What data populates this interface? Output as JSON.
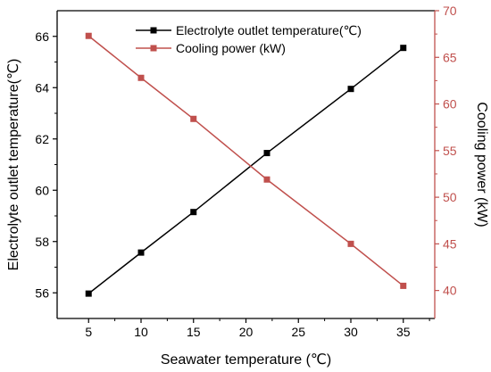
{
  "chart_data": {
    "type": "line",
    "title": "",
    "xlabel": "Seawater temperature (℃)",
    "ylabel_left": "Electrolyte outlet temperature(℃)",
    "ylabel_right": "Cooling power (kW)",
    "x": [
      5,
      10,
      15,
      22,
      30,
      35
    ],
    "xlim": [
      2,
      38
    ],
    "xticks": [
      "5",
      "10",
      "15",
      "20",
      "25",
      "30",
      "35"
    ],
    "ylim_left": [
      55,
      67
    ],
    "yticks_left": [
      "56",
      "58",
      "60",
      "62",
      "64",
      "66"
    ],
    "ylim_right": [
      37,
      70
    ],
    "yticks_right": [
      "40",
      "45",
      "50",
      "55",
      "60",
      "65",
      "70"
    ],
    "grid": false,
    "legend_position": "top-center",
    "series": [
      {
        "name": "Electrolyte outlet temperature(℃)",
        "axis": "left",
        "color": "#000000",
        "marker": "square",
        "values": [
          55.97,
          57.57,
          59.15,
          61.45,
          63.95,
          65.55
        ]
      },
      {
        "name": "Cooling power (kW)",
        "axis": "right",
        "color": "#c0504d",
        "marker": "square",
        "values": [
          67.3,
          62.8,
          58.4,
          51.9,
          45.0,
          40.5
        ]
      }
    ]
  }
}
